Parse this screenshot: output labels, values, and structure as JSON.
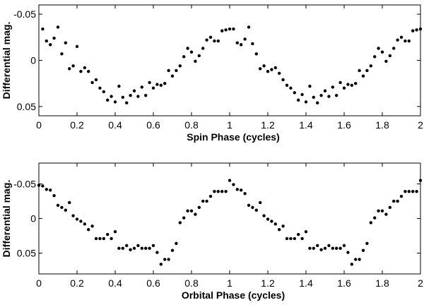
{
  "chart_data": [
    {
      "type": "scatter",
      "xlabel": "Spin Phase (cycles)",
      "ylabel": "Differential mag.",
      "xlim": [
        0,
        2
      ],
      "ylim": [
        -0.06,
        0.06
      ],
      "y_inverted": true,
      "xticks": [
        0,
        0.2,
        0.4,
        0.6,
        0.8,
        1,
        1.2,
        1.4,
        1.6,
        1.8,
        2
      ],
      "xtick_labels": [
        "0",
        "0.2",
        "0.4",
        "0.6",
        "0.8",
        "1",
        "1.2",
        "1.4",
        "1.6",
        "1.8",
        "2"
      ],
      "yticks": [
        -0.05,
        0,
        0.05
      ],
      "ytick_labels": [
        "-0.05",
        "0",
        "0.05"
      ],
      "grid": false,
      "series": [
        {
          "x": [
            0.02,
            0.04,
            0.06,
            0.08,
            0.1,
            0.12,
            0.14,
            0.16,
            0.18,
            0.2,
            0.22,
            0.24,
            0.26,
            0.28,
            0.3,
            0.32,
            0.34,
            0.36,
            0.38,
            0.4,
            0.42,
            0.44,
            0.46,
            0.48,
            0.5,
            0.52,
            0.54,
            0.56,
            0.58,
            0.6,
            0.62,
            0.64,
            0.66,
            0.68,
            0.7,
            0.72,
            0.74,
            0.76,
            0.78,
            0.8,
            0.82,
            0.84,
            0.86,
            0.88,
            0.9,
            0.92,
            0.94,
            0.96,
            0.98,
            1.0,
            1.02,
            1.04,
            1.06,
            1.08,
            1.1,
            1.12,
            1.14,
            1.16,
            1.18,
            1.2,
            1.22,
            1.24,
            1.26,
            1.28,
            1.3,
            1.32,
            1.34,
            1.36,
            1.38,
            1.4,
            1.42,
            1.44,
            1.46,
            1.48,
            1.5,
            1.52,
            1.54,
            1.56,
            1.58,
            1.6,
            1.62,
            1.64,
            1.66,
            1.68,
            1.7,
            1.72,
            1.74,
            1.76,
            1.78,
            1.8,
            1.82,
            1.84,
            1.86,
            1.88,
            1.9,
            1.92,
            1.94,
            1.96,
            1.98,
            2.0
          ],
          "y": [
            -0.034,
            -0.021,
            -0.017,
            -0.024,
            -0.036,
            -0.007,
            -0.019,
            0.009,
            0.006,
            -0.015,
            0.012,
            0.008,
            0.012,
            0.024,
            0.021,
            0.03,
            0.034,
            0.043,
            0.039,
            0.045,
            0.028,
            0.04,
            0.046,
            0.038,
            0.033,
            0.039,
            0.029,
            0.038,
            0.024,
            0.03,
            0.026,
            0.027,
            0.025,
            0.011,
            0.017,
            0.011,
            0.006,
            -0.004,
            -0.013,
            -0.009,
            0.001,
            -0.005,
            -0.013,
            -0.022,
            -0.025,
            -0.021,
            -0.021,
            -0.032,
            -0.033,
            -0.034,
            -0.034,
            -0.019,
            -0.017,
            -0.023,
            -0.036,
            -0.018,
            -0.007,
            0.009,
            0.006,
            0.012,
            0.01,
            0.008,
            0.014,
            0.021,
            0.027,
            0.03,
            0.035,
            0.043,
            0.037,
            0.045,
            0.028,
            0.04,
            0.046,
            0.038,
            0.033,
            0.039,
            0.029,
            0.038,
            0.024,
            0.03,
            0.026,
            0.027,
            0.025,
            0.011,
            0.017,
            0.011,
            0.006,
            -0.004,
            -0.013,
            -0.009,
            0.001,
            -0.005,
            -0.013,
            -0.022,
            -0.025,
            -0.021,
            -0.021,
            -0.032,
            -0.033,
            -0.034
          ]
        }
      ]
    },
    {
      "type": "scatter",
      "xlabel": "Orbital Phase (cycles)",
      "ylabel": "Differential mag.",
      "xlim": [
        0,
        2
      ],
      "ylim": [
        -0.08,
        0.08
      ],
      "y_inverted": true,
      "xticks": [
        0,
        0.2,
        0.4,
        0.6,
        0.8,
        1,
        1.2,
        1.4,
        1.6,
        1.8,
        2
      ],
      "xtick_labels": [
        "0",
        "0.2",
        "0.4",
        "0.6",
        "0.8",
        "1",
        "1.2",
        "1.4",
        "1.6",
        "1.8",
        "2"
      ],
      "yticks": [
        -0.05,
        0,
        0.05
      ],
      "ytick_labels": [
        "-0.05",
        "0",
        "0.05"
      ],
      "grid": false,
      "series": [
        {
          "x": [
            0.0,
            0.02,
            0.04,
            0.06,
            0.08,
            0.1,
            0.12,
            0.14,
            0.16,
            0.18,
            0.2,
            0.22,
            0.24,
            0.26,
            0.28,
            0.3,
            0.32,
            0.34,
            0.36,
            0.38,
            0.4,
            0.42,
            0.44,
            0.46,
            0.48,
            0.5,
            0.52,
            0.54,
            0.56,
            0.58,
            0.6,
            0.62,
            0.64,
            0.66,
            0.68,
            0.7,
            0.72,
            0.74,
            0.76,
            0.78,
            0.8,
            0.82,
            0.84,
            0.86,
            0.88,
            0.9,
            0.92,
            0.94,
            0.96,
            0.98,
            1.0,
            1.02,
            1.04,
            1.06,
            1.08,
            1.1,
            1.12,
            1.14,
            1.16,
            1.18,
            1.2,
            1.22,
            1.24,
            1.26,
            1.28,
            1.3,
            1.32,
            1.34,
            1.36,
            1.38,
            1.4,
            1.42,
            1.44,
            1.46,
            1.48,
            1.5,
            1.52,
            1.54,
            1.56,
            1.58,
            1.6,
            1.62,
            1.64,
            1.66,
            1.68,
            1.7,
            1.72,
            1.74,
            1.76,
            1.78,
            1.8,
            1.82,
            1.84,
            1.86,
            1.88,
            1.9,
            1.92,
            1.94,
            1.96,
            1.98,
            2.0
          ],
          "y": [
            -0.048,
            -0.047,
            -0.042,
            -0.041,
            -0.033,
            -0.019,
            -0.016,
            -0.012,
            -0.023,
            -0.004,
            0.001,
            0.004,
            0.008,
            0.016,
            0.011,
            0.029,
            0.029,
            0.029,
            0.023,
            0.029,
            0.019,
            0.043,
            0.043,
            0.039,
            0.045,
            0.043,
            0.039,
            0.043,
            0.043,
            0.043,
            0.039,
            0.049,
            0.066,
            0.059,
            0.059,
            0.046,
            0.036,
            0.006,
            -0.001,
            -0.011,
            -0.011,
            -0.006,
            -0.016,
            -0.025,
            -0.025,
            -0.032,
            -0.039,
            -0.039,
            -0.039,
            -0.039,
            -0.055,
            -0.049,
            -0.042,
            -0.041,
            -0.036,
            -0.019,
            -0.016,
            -0.012,
            -0.023,
            -0.004,
            0.001,
            0.004,
            0.008,
            0.016,
            0.011,
            0.029,
            0.029,
            0.029,
            0.023,
            0.029,
            0.019,
            0.043,
            0.043,
            0.039,
            0.045,
            0.043,
            0.039,
            0.043,
            0.043,
            0.043,
            0.039,
            0.049,
            0.066,
            0.059,
            0.059,
            0.046,
            0.036,
            0.006,
            -0.001,
            -0.011,
            -0.011,
            -0.006,
            -0.016,
            -0.025,
            -0.025,
            -0.032,
            -0.039,
            -0.039,
            -0.039,
            -0.039,
            -0.055
          ]
        }
      ]
    }
  ]
}
